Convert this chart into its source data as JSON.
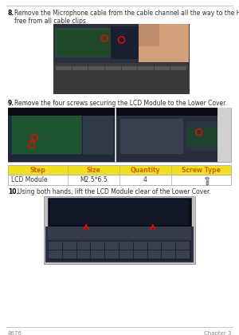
{
  "page_number": "8676",
  "chapter": "Chapter 3",
  "bg_color": "#ffffff",
  "line_color": "#cccccc",
  "step8_bold": "8.",
  "step8_text": "Remove the Microphone cable from the cable channel all the way to the Hinge Well. Ensure that the cable is\nfree from all cable clips.",
  "step9_bold": "9.",
  "step9_text": "Remove the four screws securing the LCD Module to the Lower Cover.",
  "step10_bold": "10.",
  "step10_text": "Using both hands, lift the LCD Module clear of the Lower Cover.",
  "table_header": [
    "Step",
    "Size",
    "Quantity",
    "Screw Type"
  ],
  "table_row": [
    "LCD Module",
    "M2.5*6.5",
    "4",
    ""
  ],
  "table_header_bg": "#f0e020",
  "table_header_text": "#cc6600",
  "table_border_color": "#aaaaaa",
  "text_color": "#333333",
  "bold_color": "#000000",
  "font_size_text": 5.5,
  "font_size_table": 5.5,
  "font_size_footer": 5.0,
  "img1_color": "#4a5a6a",
  "img2_color": "#3a4a5a",
  "img3_color": "#2a3a4a"
}
